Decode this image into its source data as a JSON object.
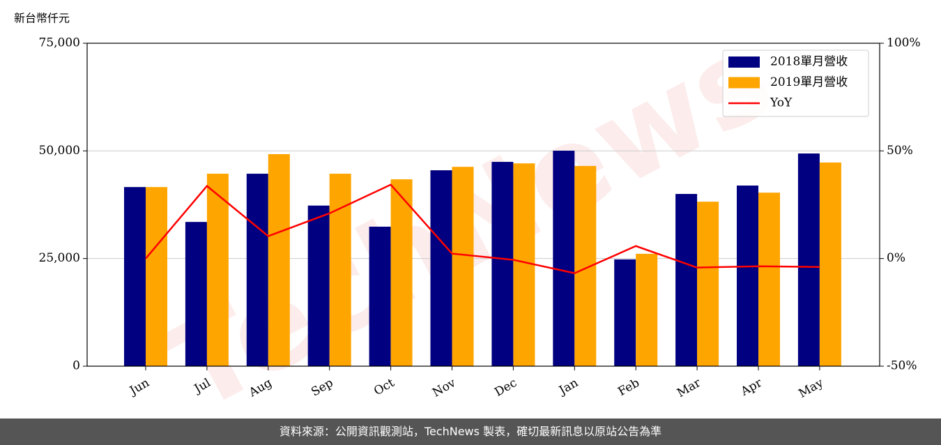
{
  "chart_data": {
    "type": "bar",
    "y_axis_label": "新台幣仟元",
    "watermark": "TechNews",
    "categories": [
      "Jun",
      "Jul",
      "Aug",
      "Sep",
      "Oct",
      "Nov",
      "Dec",
      "Jan",
      "Feb",
      "Mar",
      "Apr",
      "May"
    ],
    "series": [
      {
        "name": "2018單月營收",
        "color": "#000080",
        "values": [
          41600,
          33500,
          44700,
          37300,
          32400,
          45500,
          47450,
          50050,
          24800,
          40000,
          41950,
          49400
        ]
      },
      {
        "name": "2019單月營收",
        "color": "#ffa500",
        "values": [
          41600,
          44700,
          49250,
          44700,
          43400,
          46300,
          47100,
          46500,
          26100,
          38200,
          40300,
          47300
        ]
      },
      {
        "name": "YoY",
        "color": "#ff0000",
        "type": "line",
        "axis": "y2",
        "values": [
          0,
          33.7,
          10.4,
          21,
          34.3,
          2.3,
          -0.6,
          -6.8,
          5.8,
          -4.2,
          -3.6,
          -3.9
        ]
      }
    ],
    "ylim": [
      0,
      75000
    ],
    "yticks": [
      0,
      {
        "value": 25000,
        "label": "25,000"
      },
      {
        "value": 50000,
        "label": "50,000"
      },
      {
        "value": 75000,
        "label": "75,000"
      }
    ],
    "y2lim": [
      -50,
      100
    ],
    "y2ticks": [
      {
        "value": -50,
        "label": "-50%"
      },
      {
        "value": 0,
        "label": "0%"
      },
      {
        "value": 50,
        "label": "50%"
      },
      {
        "value": 100,
        "label": "100%"
      }
    ],
    "grid": true,
    "legend": "upper right"
  },
  "footer": {
    "text": "資料來源：公開資訊觀測站，TechNews 製表，確切最新訊息以原站公告為準"
  }
}
